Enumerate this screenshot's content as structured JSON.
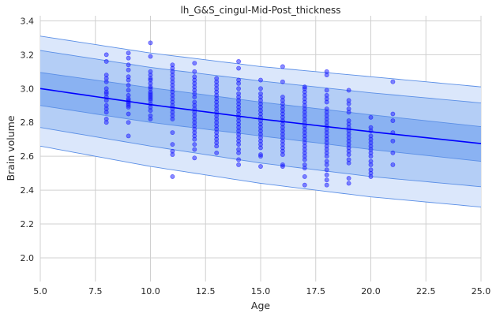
{
  "chart_data": {
    "type": "scatter",
    "title": "lh_G&S_cingul-Mid-Post_thickness",
    "xlabel": "Age",
    "ylabel": "Brain volume",
    "xlim": [
      5.0,
      25.0
    ],
    "ylim": [
      1.86,
      3.43
    ],
    "xticks": [
      5.0,
      7.5,
      10.0,
      12.5,
      15.0,
      17.5,
      20.0,
      22.5,
      25.0
    ],
    "xtick_labels": [
      "5.0",
      "7.5",
      "10.0",
      "12.5",
      "15.0",
      "17.5",
      "20.0",
      "22.5",
      "25.0"
    ],
    "yticks": [
      2.0,
      2.2,
      2.4,
      2.6,
      2.8,
      3.0,
      3.2,
      3.4
    ],
    "ytick_labels": [
      "2.0",
      "2.2",
      "2.4",
      "2.6",
      "2.8",
      "3.0",
      "3.2",
      "3.4"
    ],
    "grid": true,
    "colors": {
      "points": "#1a1aff",
      "mean_line": "#0000ff",
      "band_outer": "#dbe7fb",
      "band_middle": "#b4cef6",
      "band_inner": "#8ab2f2",
      "band_edge": "#5b8fe6",
      "grid": "#d0d0d0"
    },
    "mean_curve": {
      "x": [
        5,
        10,
        15,
        20,
        25
      ],
      "y": [
        3.0,
        2.905,
        2.82,
        2.745,
        2.675
      ]
    },
    "bands": [
      {
        "level": "outer",
        "lower": [
          2.66,
          2.54,
          2.44,
          2.36,
          2.3
        ],
        "upper": [
          3.31,
          3.21,
          3.13,
          3.07,
          3.01
        ]
      },
      {
        "level": "middle",
        "lower": [
          2.77,
          2.66,
          2.56,
          2.48,
          2.42
        ],
        "upper": [
          3.225,
          3.125,
          3.045,
          2.975,
          2.915
        ]
      },
      {
        "level": "inner",
        "lower": [
          2.9,
          2.8,
          2.72,
          2.64,
          2.57
        ],
        "upper": [
          3.095,
          3.005,
          2.92,
          2.845,
          2.775
        ]
      }
    ],
    "points": [
      {
        "x": 8,
        "y": [
          3.2,
          3.16,
          3.08,
          3.06,
          3.04,
          3.0,
          2.98,
          2.97,
          2.95,
          2.93,
          2.9,
          2.88,
          2.86,
          2.82,
          2.8
        ]
      },
      {
        "x": 9,
        "y": [
          3.21,
          3.18,
          3.14,
          3.11,
          3.07,
          3.05,
          3.02,
          2.99,
          2.96,
          2.94,
          2.93,
          2.92,
          2.91,
          2.9,
          2.89,
          2.85,
          2.8,
          2.72
        ]
      },
      {
        "x": 10,
        "y": [
          3.27,
          3.19,
          3.1,
          3.08,
          3.06,
          3.05,
          3.03,
          3.01,
          3.0,
          2.98,
          2.97,
          2.96,
          2.95,
          2.94,
          2.93,
          2.91,
          2.89,
          2.87,
          2.84,
          2.82
        ]
      },
      {
        "x": 11,
        "y": [
          3.14,
          3.12,
          3.1,
          3.08,
          3.06,
          3.04,
          3.02,
          3.0,
          2.98,
          2.96,
          2.94,
          2.92,
          2.9,
          2.88,
          2.86,
          2.84,
          2.82,
          2.74,
          2.67,
          2.63,
          2.61,
          2.48
        ]
      },
      {
        "x": 12,
        "y": [
          3.15,
          3.1,
          3.07,
          3.05,
          3.03,
          3.01,
          2.99,
          2.97,
          2.95,
          2.92,
          2.9,
          2.88,
          2.86,
          2.84,
          2.82,
          2.8,
          2.78,
          2.76,
          2.74,
          2.72,
          2.7,
          2.67,
          2.64,
          2.59
        ]
      },
      {
        "x": 13,
        "y": [
          3.06,
          3.04,
          3.02,
          3.0,
          2.98,
          2.96,
          2.94,
          2.92,
          2.9,
          2.88,
          2.86,
          2.84,
          2.82,
          2.8,
          2.78,
          2.76,
          2.74,
          2.72,
          2.7,
          2.68,
          2.66,
          2.62
        ]
      },
      {
        "x": 14,
        "y": [
          3.16,
          3.12,
          3.05,
          3.03,
          3.0,
          2.97,
          2.95,
          2.93,
          2.91,
          2.89,
          2.87,
          2.85,
          2.83,
          2.81,
          2.79,
          2.77,
          2.75,
          2.73,
          2.71,
          2.69,
          2.67,
          2.64,
          2.62,
          2.58,
          2.55
        ]
      },
      {
        "x": 15,
        "y": [
          3.05,
          3.0,
          2.97,
          2.95,
          2.93,
          2.91,
          2.89,
          2.87,
          2.85,
          2.83,
          2.81,
          2.79,
          2.77,
          2.75,
          2.73,
          2.71,
          2.69,
          2.67,
          2.65,
          2.61,
          2.6,
          2.54
        ]
      },
      {
        "x": 16,
        "y": [
          3.13,
          3.04,
          2.95,
          2.93,
          2.91,
          2.89,
          2.87,
          2.85,
          2.83,
          2.81,
          2.79,
          2.77,
          2.75,
          2.73,
          2.71,
          2.69,
          2.67,
          2.65,
          2.63,
          2.61,
          2.55,
          2.54
        ]
      },
      {
        "x": 17,
        "y": [
          3.01,
          3.0,
          2.98,
          2.96,
          2.94,
          2.92,
          2.9,
          2.88,
          2.86,
          2.84,
          2.82,
          2.8,
          2.78,
          2.76,
          2.74,
          2.72,
          2.7,
          2.68,
          2.66,
          2.64,
          2.62,
          2.6,
          2.58,
          2.55,
          2.53,
          2.48,
          2.43
        ]
      },
      {
        "x": 18,
        "y": [
          3.1,
          3.08,
          2.99,
          2.96,
          2.94,
          2.92,
          2.88,
          2.86,
          2.84,
          2.82,
          2.8,
          2.78,
          2.76,
          2.74,
          2.72,
          2.7,
          2.68,
          2.66,
          2.64,
          2.62,
          2.6,
          2.57,
          2.55,
          2.52,
          2.49,
          2.46,
          2.43
        ]
      },
      {
        "x": 19,
        "y": [
          2.99,
          2.93,
          2.91,
          2.88,
          2.86,
          2.81,
          2.79,
          2.77,
          2.75,
          2.73,
          2.71,
          2.69,
          2.67,
          2.65,
          2.63,
          2.61,
          2.58,
          2.56,
          2.47,
          2.44
        ]
      },
      {
        "x": 20,
        "y": [
          2.83,
          2.77,
          2.75,
          2.72,
          2.7,
          2.68,
          2.66,
          2.64,
          2.62,
          2.6,
          2.57,
          2.55,
          2.52,
          2.5,
          2.48
        ]
      },
      {
        "x": 21,
        "y": [
          3.04,
          2.85,
          2.81,
          2.74,
          2.69,
          2.62,
          2.55
        ]
      }
    ]
  }
}
